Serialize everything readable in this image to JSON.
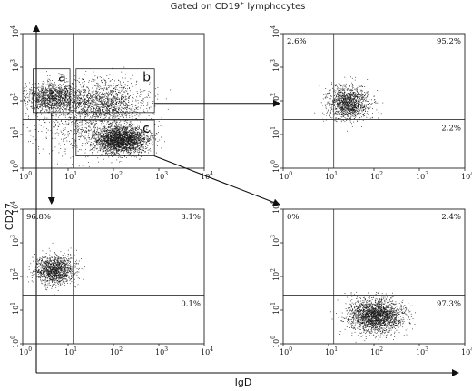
{
  "chart_data": {
    "type": "scatter",
    "title": "Gated on CD19",
    "title_superscript": "+",
    "title_suffix": " lymphocytes",
    "xlabel": "IgD",
    "ylabel": "CD27",
    "x_scale": "log",
    "y_scale": "log",
    "xlim": [
      1,
      10000
    ],
    "ylim": [
      1,
      10000
    ],
    "tick_values": [
      1,
      10,
      100,
      1000,
      10000
    ],
    "tick_exponents": [
      "0",
      "1",
      "2",
      "3",
      "4"
    ],
    "panels": [
      {
        "id": "main",
        "quadrant_x": 13,
        "quadrant_y": 28,
        "gates": [
          {
            "label": "a",
            "x": [
              1.7,
              11
            ],
            "y": [
              45,
              900
            ]
          },
          {
            "label": "b",
            "x": [
              15,
              800
            ],
            "y": [
              45,
              900
            ]
          },
          {
            "label": "c",
            "x": [
              15,
              800
            ],
            "y": [
              2.3,
              27
            ]
          }
        ],
        "populations": [
          {
            "cx": 4.5,
            "cy": 130,
            "sx": 0.32,
            "sy": 0.22,
            "n": 1300
          },
          {
            "cx": 60,
            "cy": 90,
            "sx": 0.45,
            "sy": 0.35,
            "n": 1300
          },
          {
            "cx": 150,
            "cy": 7,
            "sx": 0.28,
            "sy": 0.2,
            "n": 2600
          },
          {
            "cx": 20,
            "cy": 20,
            "sx": 0.6,
            "sy": 0.5,
            "n": 700
          }
        ]
      },
      {
        "id": "b",
        "source_gate": "b",
        "quadrant_x": 13,
        "quadrant_y": 28,
        "percentages": {
          "upper_left": "2.6%",
          "upper_right": "95.2%",
          "lower_right": "2.2%"
        },
        "populations": [
          {
            "cx": 28,
            "cy": 90,
            "sx": 0.22,
            "sy": 0.25,
            "n": 1300
          }
        ]
      },
      {
        "id": "a",
        "source_gate": "a",
        "quadrant_x": 13,
        "quadrant_y": 28,
        "percentages": {
          "upper_left": "96.8%",
          "upper_right": "3.1%",
          "lower_right": "0.1%"
        },
        "populations": [
          {
            "cx": 5,
            "cy": 160,
            "sx": 0.22,
            "sy": 0.22,
            "n": 1300
          }
        ]
      },
      {
        "id": "c",
        "source_gate": "c",
        "quadrant_x": 13,
        "quadrant_y": 28,
        "percentages": {
          "upper_left": "0%",
          "upper_right": "2.4%",
          "lower_right": "97.3%"
        },
        "populations": [
          {
            "cx": 110,
            "cy": 7,
            "sx": 0.3,
            "sy": 0.25,
            "n": 2200
          }
        ]
      }
    ]
  }
}
